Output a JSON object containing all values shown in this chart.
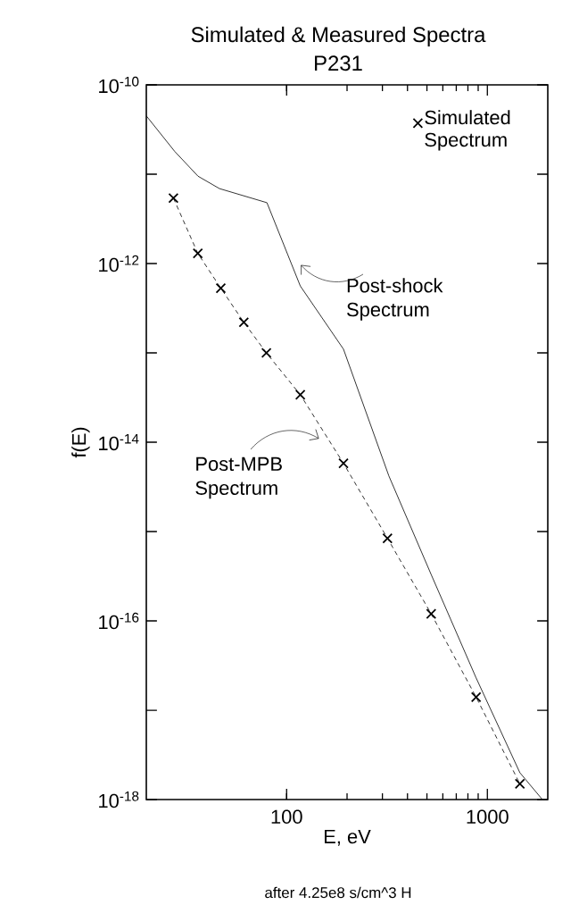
{
  "chart_data": {
    "type": "line",
    "title": "Simulated & Measured Spectra",
    "subtitle": "P231",
    "xlabel": "E, eV",
    "ylabel": "f(E)",
    "annotations": [
      "Post-shock Spectrum",
      "Post-MPB Spectrum",
      "after 4.25e8 s/cm^3 H"
    ],
    "log": "xy",
    "xlim": [
      20,
      2000
    ],
    "ylim": [
      1e-18,
      1e-10
    ],
    "xticks": [
      100,
      1000
    ],
    "yticks": [
      {
        "value": 1e-10,
        "label": "10$^{-10}$"
      },
      {
        "value": 1e-11,
        "label": null
      },
      {
        "value": 1e-12,
        "label": "10$^{-12}$"
      },
      {
        "value": 1e-13,
        "label": null
      },
      {
        "value": 1e-14,
        "label": "10$^{-14}$"
      },
      {
        "value": 1e-15,
        "label": null
      },
      {
        "value": 1e-16,
        "label": "10$^{-16}$"
      },
      {
        "value": 1e-17,
        "label": null
      },
      {
        "value": 1e-18,
        "label": "10$^{-18}$"
      }
    ],
    "legend": "top right",
    "series": [
      {
        "name": "Simulated Spectrum",
        "type": "scatter",
        "marker": "cross",
        "color": "#000000",
        "x": [
          27.3,
          36.1,
          47,
          61.2,
          79.3,
          117,
          192,
          318,
          525,
          879,
          1452
        ],
        "values": [
          5.4e-12,
          1.3e-12,
          5.3e-13,
          2.2e-13,
          1e-13,
          3.4e-14,
          5.8e-15,
          8.4e-16,
          1.2e-16,
          1.4e-17,
          1.5e-18
        ]
      },
      {
        "line_style": "dashed",
        "color": "#000000",
        "x": [
          27.3,
          36.1,
          47,
          61.2,
          79.3,
          117,
          192,
          318,
          525,
          879,
          1452
        ],
        "values": [
          5.4e-12,
          1.3e-12,
          5.3e-13,
          2.2e-13,
          1e-13,
          3.4e-14,
          5.8e-15,
          8.4e-16,
          1.2e-16,
          1.4e-17,
          1.5e-18
        ]
      },
      {
        "line_style": "solid",
        "color": "#000000",
        "x": [
          20,
          27.7,
          36.2,
          46.3,
          79.8,
          117,
          192,
          323,
          525,
          879,
          1452,
          1880
        ],
        "values": [
          4.5e-11,
          1.8e-11,
          9.5e-12,
          6.9e-12,
          4.8e-12,
          5.6e-13,
          1.1e-13,
          4.2e-15,
          3.3e-16,
          2.3e-17,
          2e-18,
          1e-18
        ]
      }
    ]
  }
}
